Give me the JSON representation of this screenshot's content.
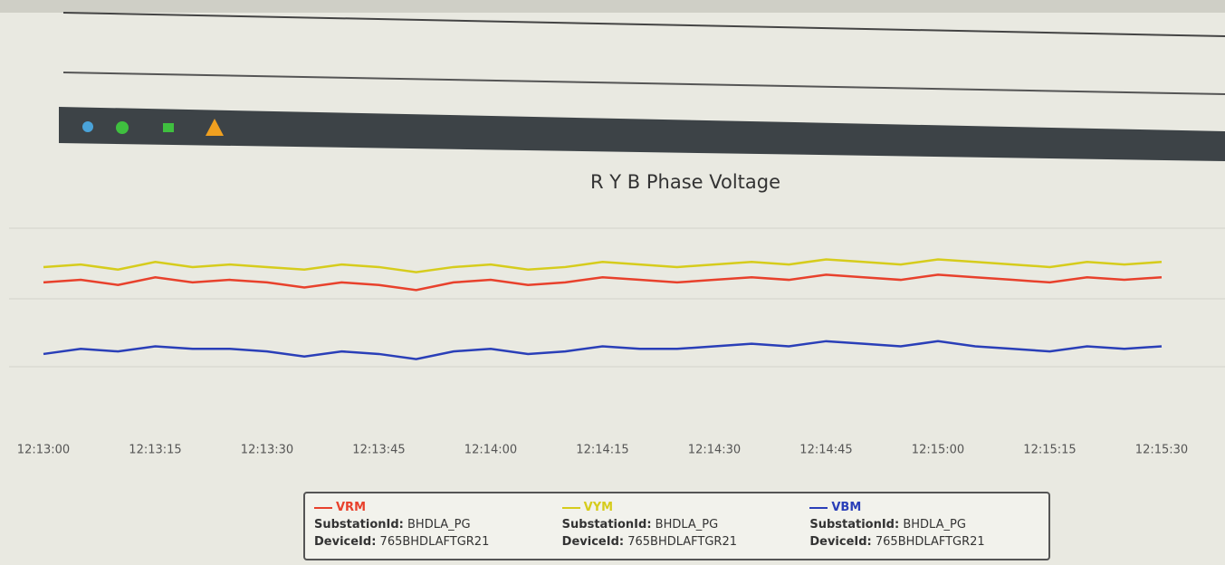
{
  "chart_data": {
    "type": "line",
    "title": "R Y B Phase Voltage",
    "categories": [
      "12:13:00",
      null,
      null,
      "12:13:15",
      null,
      null,
      "12:13:30",
      null,
      null,
      "12:13:45",
      null,
      null,
      "12:14:00",
      null,
      null,
      "12:14:15",
      null,
      null,
      "12:14:30",
      null,
      null,
      "12:14:45",
      null,
      null,
      "12:15:00",
      null,
      null,
      "12:15:15",
      null,
      null,
      "12:15:30"
    ],
    "ylim": [
      10,
      95
    ],
    "legend_labels": {
      "substation": "SubstationId:",
      "device": "DeviceId:"
    },
    "series": [
      {
        "name": "VRM",
        "color": "#e8412c",
        "substation_id": "BHDLA_PG",
        "device_id": "765BHDLAFTGR21",
        "values": [
          66,
          67,
          65,
          68,
          66,
          67,
          66,
          64,
          66,
          65,
          63,
          66,
          67,
          65,
          66,
          68,
          67,
          66,
          67,
          68,
          67,
          69,
          68,
          67,
          69,
          68,
          67,
          66,
          68,
          67,
          68
        ]
      },
      {
        "name": "VYM",
        "color": "#d6cc1c",
        "substation_id": "BHDLA_PG",
        "device_id": "765BHDLAFTGR21",
        "values": [
          72,
          73,
          71,
          74,
          72,
          73,
          72,
          71,
          73,
          72,
          70,
          72,
          73,
          71,
          72,
          74,
          73,
          72,
          73,
          74,
          73,
          75,
          74,
          73,
          75,
          74,
          73,
          72,
          74,
          73,
          74
        ]
      },
      {
        "name": "VBM",
        "color": "#2a3fb8",
        "substation_id": "BHDLA_PG",
        "device_id": "765BHDLAFTGR21",
        "values": [
          38,
          40,
          39,
          41,
          40,
          40,
          39,
          37,
          39,
          38,
          36,
          39,
          40,
          38,
          39,
          41,
          40,
          40,
          41,
          42,
          41,
          43,
          42,
          41,
          43,
          41,
          40,
          39,
          41,
          40,
          41
        ]
      }
    ]
  }
}
